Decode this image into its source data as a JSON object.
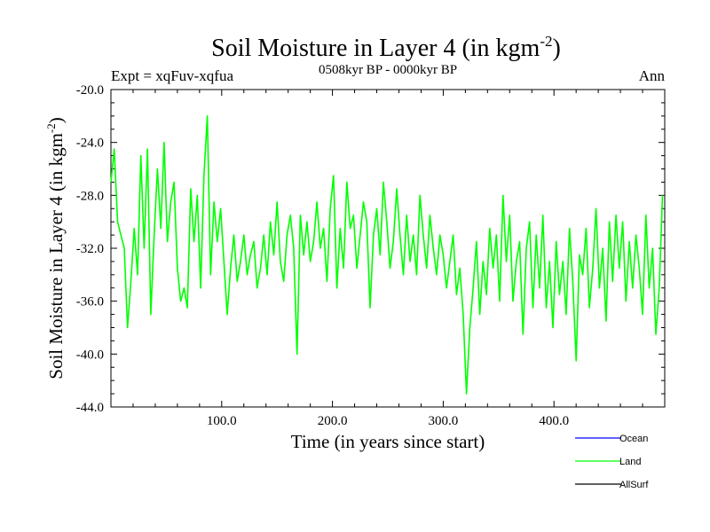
{
  "chart_data": {
    "type": "line",
    "title_main": "Soil Moisture in Layer 4 (in kgm",
    "title_sup": "-2",
    "title_close": ")",
    "subtitle_left": "Expt = xqFuv-xqfua",
    "subtitle_center": "0508kyr BP - 0000kyr BP",
    "subtitle_right": "Ann",
    "xlabel": "Time (in years since start)",
    "ylabel_main": "Soil Moisture in Layer 4 (in kgm",
    "ylabel_sup": "-2",
    "ylabel_close": ")",
    "xlim": [
      0,
      500
    ],
    "ylim": [
      -44,
      -20
    ],
    "x_ticks": [
      100,
      200,
      300,
      400
    ],
    "x_tick_labels": [
      "100.0",
      "200.0",
      "300.0",
      "400.0"
    ],
    "y_ticks": [
      -20,
      -24,
      -28,
      -32,
      -36,
      -40,
      -44
    ],
    "y_tick_labels": [
      "-20.0",
      "-24.0",
      "-28.0",
      "-32.0",
      "-36.0",
      "-40.0",
      "-44.0"
    ],
    "series": [
      {
        "name": "Ocean",
        "color": "#0000ff",
        "x": [],
        "y": []
      },
      {
        "name": "Land",
        "color": "#00ff00",
        "x": [
          0,
          3,
          6,
          9,
          12,
          15,
          18,
          21,
          24,
          27,
          30,
          33,
          36,
          39,
          42,
          45,
          48,
          51,
          54,
          57,
          60,
          63,
          66,
          69,
          72,
          75,
          78,
          81,
          84,
          87,
          90,
          93,
          96,
          99,
          102,
          105,
          108,
          111,
          114,
          117,
          120,
          123,
          126,
          129,
          132,
          135,
          138,
          141,
          144,
          147,
          150,
          153,
          156,
          159,
          162,
          165,
          168,
          171,
          174,
          177,
          180,
          183,
          186,
          189,
          192,
          195,
          198,
          201,
          204,
          207,
          210,
          213,
          216,
          219,
          222,
          225,
          228,
          231,
          234,
          237,
          240,
          243,
          246,
          249,
          252,
          255,
          258,
          261,
          264,
          267,
          270,
          273,
          276,
          279,
          282,
          285,
          288,
          291,
          294,
          297,
          300,
          303,
          306,
          309,
          312,
          315,
          318,
          321,
          324,
          327,
          330,
          333,
          336,
          339,
          342,
          345,
          348,
          351,
          354,
          357,
          360,
          363,
          366,
          369,
          372,
          375,
          378,
          381,
          384,
          387,
          390,
          393,
          396,
          399,
          402,
          405,
          408,
          411,
          414,
          417,
          420,
          423,
          426,
          429,
          432,
          435,
          438,
          441,
          444,
          447,
          450,
          453,
          456,
          459,
          462,
          465,
          468,
          471,
          474,
          477,
          480,
          483,
          486,
          489,
          492,
          495,
          498
        ],
        "y": [
          -27.0,
          -24.5,
          -30.0,
          -31.0,
          -32.0,
          -38.0,
          -34.5,
          -30.5,
          -34.0,
          -25.0,
          -32.0,
          -24.5,
          -37.0,
          -31.0,
          -26.0,
          -30.5,
          -24.0,
          -31.5,
          -28.5,
          -27.0,
          -33.5,
          -36.0,
          -35.0,
          -36.5,
          -27.5,
          -31.5,
          -28.0,
          -35.0,
          -26.5,
          -22.0,
          -34.0,
          -28.5,
          -31.5,
          -29.0,
          -33.0,
          -37.0,
          -33.5,
          -31.0,
          -34.5,
          -33.0,
          -31.0,
          -34.0,
          -32.5,
          -31.5,
          -35.0,
          -33.5,
          -31.0,
          -34.0,
          -30.0,
          -32.5,
          -28.5,
          -33.0,
          -34.5,
          -31.0,
          -29.5,
          -32.0,
          -40.0,
          -29.5,
          -32.5,
          -30.0,
          -33.0,
          -31.5,
          -28.5,
          -32.0,
          -30.5,
          -34.5,
          -29.0,
          -26.5,
          -35.0,
          -30.5,
          -33.5,
          -27.0,
          -30.5,
          -29.5,
          -33.5,
          -31.0,
          -28.5,
          -30.0,
          -36.5,
          -31.0,
          -29.0,
          -32.5,
          -27.0,
          -30.0,
          -33.5,
          -31.5,
          -27.5,
          -31.0,
          -34.0,
          -29.5,
          -33.0,
          -31.0,
          -34.0,
          -28.0,
          -31.0,
          -33.5,
          -29.5,
          -32.0,
          -34.0,
          -31.0,
          -32.5,
          -35.0,
          -33.0,
          -31.0,
          -35.5,
          -33.5,
          -37.0,
          -43.0,
          -38.0,
          -35.0,
          -31.5,
          -37.0,
          -33.0,
          -35.5,
          -30.5,
          -33.5,
          -31.0,
          -36.0,
          -28.0,
          -33.0,
          -29.5,
          -36.0,
          -33.0,
          -31.5,
          -38.5,
          -32.0,
          -30.0,
          -36.5,
          -31.0,
          -35.0,
          -29.5,
          -36.5,
          -33.0,
          -38.0,
          -31.5,
          -35.5,
          -33.0,
          -37.0,
          -30.5,
          -34.5,
          -40.5,
          -32.5,
          -34.0,
          -30.5,
          -36.5,
          -33.5,
          -29.0,
          -35.0,
          -32.0,
          -37.5,
          -30.0,
          -34.5,
          -29.5,
          -33.5,
          -30.0,
          -36.0,
          -31.5,
          -35.0,
          -31.0,
          -33.5,
          -37.0,
          -29.5,
          -35.0,
          -32.0,
          -38.5,
          -35.0,
          -28.0
        ]
      },
      {
        "name": "AllSurf",
        "color": "#000000",
        "x": [],
        "y": []
      }
    ],
    "legend": [
      "Ocean",
      "Land",
      "AllSurf"
    ],
    "legend_position": "bottom-right"
  }
}
